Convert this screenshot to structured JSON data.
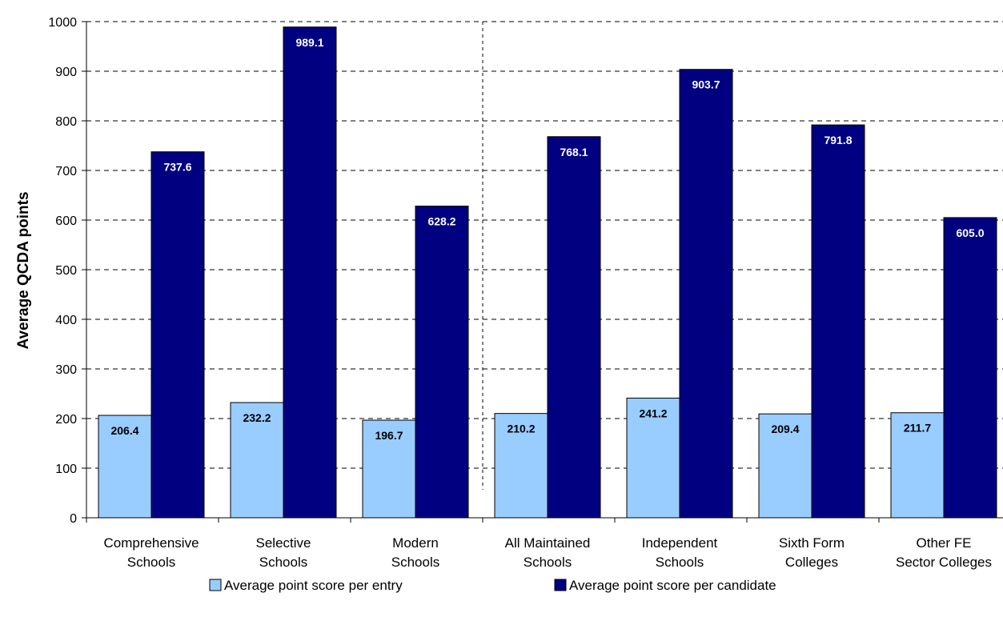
{
  "chart_data": {
    "type": "bar",
    "ylabel": "Average QCDA points",
    "ylim": [
      0,
      1000
    ],
    "yticks": [
      "0",
      "100",
      "200",
      "300",
      "400",
      "500",
      "600",
      "700",
      "800",
      "900",
      "1000"
    ],
    "grid": "horizontal dashed",
    "divider_after_category": 3,
    "legend_position": "bottom",
    "categories": [
      [
        "Comprehensive",
        "Schools"
      ],
      [
        "Selective",
        "Schools"
      ],
      [
        "Modern",
        "Schools"
      ],
      [
        "All Maintained",
        "Schools"
      ],
      [
        "Independent",
        "Schools"
      ],
      [
        "Sixth Form",
        "Colleges"
      ],
      [
        "Other FE",
        "Sector Colleges"
      ]
    ],
    "series": [
      {
        "name": "Average point score per entry",
        "color": "#99ccff",
        "values": [
          206.4,
          232.2,
          196.7,
          210.2,
          241.2,
          209.4,
          211.7
        ],
        "labels": [
          "206.4",
          "232.2",
          "196.7",
          "210.2",
          "241.2",
          "209.4",
          "211.7"
        ]
      },
      {
        "name": "Average point score per candidate",
        "color": "#000080",
        "values": [
          737.6,
          989.1,
          628.2,
          768.1,
          903.7,
          791.8,
          605.0
        ],
        "labels": [
          "737.6",
          "989.1",
          "628.2",
          "768.1",
          "903.7",
          "791.8",
          "605.0"
        ]
      }
    ]
  }
}
